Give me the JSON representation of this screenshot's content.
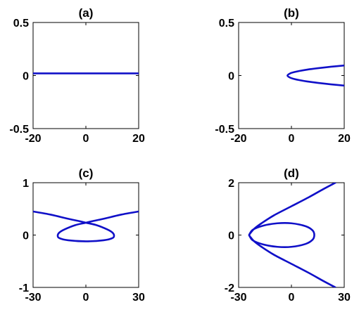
{
  "figure": {
    "line_color": "#1010c8",
    "axis_color": "#000000",
    "background": "#ffffff"
  },
  "chart_data": [
    {
      "type": "line",
      "title": "(a)",
      "xlabel": "",
      "ylabel": "",
      "xlim": [
        -20,
        20
      ],
      "ylim": [
        -0.5,
        0.5
      ],
      "xticks": [
        -20,
        0,
        20
      ],
      "yticks": [
        -0.5,
        0,
        0.5
      ],
      "xtick_labels": [
        "-20",
        "0",
        "20"
      ],
      "ytick_labels": [
        "-0.5",
        "0",
        "0.5"
      ],
      "grid": false,
      "series": [
        {
          "x": [
            -20,
            -10,
            0,
            10,
            20
          ],
          "y": [
            0.02,
            0.02,
            0.02,
            0.02,
            0.02
          ]
        }
      ]
    },
    {
      "type": "line",
      "title": "(b)",
      "xlabel": "",
      "ylabel": "",
      "xlim": [
        -20,
        20
      ],
      "ylim": [
        -0.5,
        0.5
      ],
      "xticks": [
        -20,
        0,
        20
      ],
      "yticks": [
        -0.5,
        0,
        0.5
      ],
      "xtick_labels": [
        "-20",
        "0",
        "20"
      ],
      "ytick_labels": [
        "-0.5",
        "0",
        "0.5"
      ],
      "grid": false,
      "series": [
        {
          "x": [
            20,
            15,
            10,
            6,
            3,
            1,
            -0.5,
            -1.5,
            -0.5,
            1,
            3,
            6,
            10,
            15,
            20
          ],
          "y": [
            0.095,
            0.083,
            0.069,
            0.056,
            0.043,
            0.032,
            0.02,
            0.0,
            -0.02,
            -0.032,
            -0.043,
            -0.056,
            -0.069,
            -0.083,
            -0.095
          ]
        }
      ]
    },
    {
      "type": "line",
      "title": "(c)",
      "xlabel": "",
      "ylabel": "",
      "xlim": [
        -30,
        30
      ],
      "ylim": [
        -1,
        1
      ],
      "xticks": [
        -30,
        0,
        30
      ],
      "yticks": [
        -1,
        0,
        1
      ],
      "xtick_labels": [
        "-30",
        "0",
        "30"
      ],
      "ytick_labels": [
        "-1",
        "0",
        "1"
      ],
      "grid": false,
      "series": [
        {
          "x": [
            -30,
            -20,
            -10,
            -3,
            0,
            6,
            12,
            15,
            16,
            15,
            10,
            0,
            -10,
            -15,
            -16,
            -15,
            -12,
            -6,
            0,
            3,
            10,
            20,
            30
          ],
          "y": [
            0.45,
            0.39,
            0.31,
            0.26,
            0.235,
            0.19,
            0.11,
            0.05,
            -0.01,
            -0.06,
            -0.1,
            -0.12,
            -0.1,
            -0.06,
            -0.01,
            0.05,
            0.11,
            0.19,
            0.235,
            0.26,
            0.31,
            0.39,
            0.45
          ]
        }
      ]
    },
    {
      "type": "line",
      "title": "(d)",
      "xlabel": "",
      "ylabel": "",
      "xlim": [
        -30,
        30
      ],
      "ylim": [
        -2,
        2
      ],
      "xticks": [
        -30,
        0,
        30
      ],
      "yticks": [
        -2,
        0,
        2
      ],
      "xtick_labels": [
        "-30",
        "0",
        "30"
      ],
      "ytick_labels": [
        "-2",
        "0",
        "2"
      ],
      "grid": false,
      "series": [
        {
          "x": [
            25,
            18,
            10,
            0,
            -10,
            -17,
            -21,
            -23,
            -24,
            -23,
            -21,
            -17,
            -10,
            0,
            10,
            18,
            25
          ],
          "y": [
            2.0,
            1.75,
            1.45,
            1.1,
            0.75,
            0.45,
            0.25,
            0.1,
            0.0,
            -0.1,
            -0.25,
            -0.45,
            -0.75,
            -1.1,
            -1.45,
            -1.75,
            -2.0
          ]
        },
        {
          "x": [
            -24,
            -22,
            -16,
            -8,
            0,
            8,
            12,
            13,
            12,
            8,
            0,
            -8,
            -16,
            -22,
            -24
          ],
          "y": [
            0.0,
            0.2,
            0.36,
            0.45,
            0.45,
            0.34,
            0.18,
            0.0,
            -0.18,
            -0.34,
            -0.45,
            -0.45,
            -0.36,
            -0.2,
            0.0
          ]
        }
      ]
    }
  ]
}
